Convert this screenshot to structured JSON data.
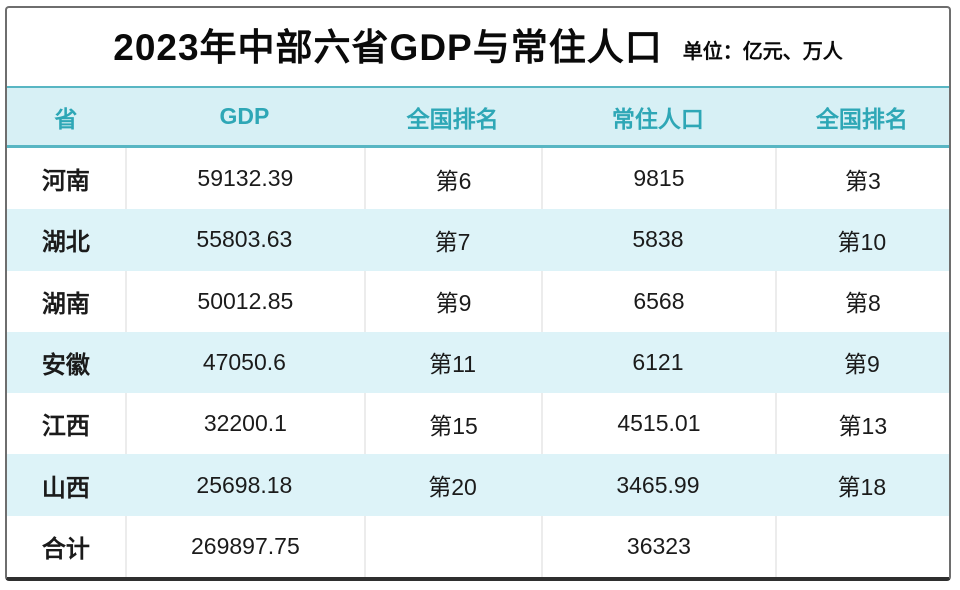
{
  "title": "2023年中部六省GDP与常住人口",
  "unit_note": "单位：亿元、万人",
  "colors": {
    "accent_teal": "#2ea7b6",
    "teal_border": "#58b6c3",
    "header_bg": "#d7f0f5",
    "alt_row_bg": "#ddf3f8",
    "text_dark": "#1b1b1b"
  },
  "table": {
    "columns": [
      "省",
      "GDP",
      "全国排名",
      "常住人口",
      "全国排名"
    ],
    "rows": [
      {
        "province": "河南",
        "gdp": "59132.39",
        "gdp_rank": "第6",
        "population": "9815",
        "pop_rank": "第3"
      },
      {
        "province": "湖北",
        "gdp": "55803.63",
        "gdp_rank": "第7",
        "population": "5838",
        "pop_rank": "第10"
      },
      {
        "province": "湖南",
        "gdp": "50012.85",
        "gdp_rank": "第9",
        "population": "6568",
        "pop_rank": "第8"
      },
      {
        "province": "安徽",
        "gdp": "47050.6",
        "gdp_rank": "第11",
        "population": "6121",
        "pop_rank": "第9"
      },
      {
        "province": "江西",
        "gdp": "32200.1",
        "gdp_rank": "第15",
        "population": "4515.01",
        "pop_rank": "第13"
      },
      {
        "province": "山西",
        "gdp": "25698.18",
        "gdp_rank": "第20",
        "population": "3465.99",
        "pop_rank": "第18"
      },
      {
        "province": "合计",
        "gdp": "269897.75",
        "gdp_rank": "",
        "population": "36323",
        "pop_rank": ""
      }
    ]
  },
  "chart_data": {
    "type": "table",
    "title": "2023年中部六省GDP与常住人口",
    "unit": "单位：亿元、万人",
    "columns": [
      "省",
      "GDP",
      "全国排名",
      "常住人口",
      "全国排名"
    ],
    "rows": [
      [
        "河南",
        59132.39,
        "第6",
        9815,
        "第3"
      ],
      [
        "湖北",
        55803.63,
        "第7",
        5838,
        "第10"
      ],
      [
        "湖南",
        50012.85,
        "第9",
        6568,
        "第8"
      ],
      [
        "安徽",
        47050.6,
        "第11",
        6121,
        "第9"
      ],
      [
        "江西",
        32200.1,
        "第15",
        4515.01,
        "第13"
      ],
      [
        "山西",
        25698.18,
        "第20",
        3465.99,
        "第18"
      ],
      [
        "合计",
        269897.75,
        "",
        36323,
        ""
      ]
    ]
  }
}
